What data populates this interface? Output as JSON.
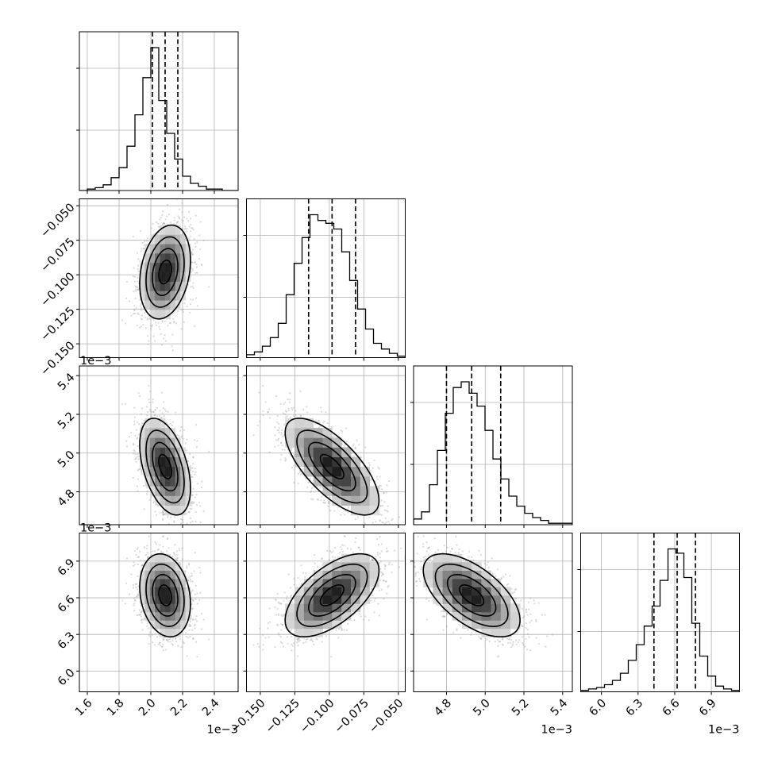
{
  "chart_data": {
    "type": "corner",
    "grid_size": 4,
    "grid": true,
    "parameters": [
      {
        "range": [
          0.00155,
          0.00255
        ],
        "ticks": [
          0.0016,
          0.0018,
          0.002,
          0.0022,
          0.0024
        ],
        "tick_labels": [
          "1.6",
          "1.8",
          "2.0",
          "2.2",
          "2.4"
        ],
        "offset_label": "1e−3",
        "median": 0.00209,
        "sigma": 8e-05,
        "quantiles": [
          0.00201,
          0.00209,
          0.00217
        ],
        "histogram": {
          "edges_start": 0.00155,
          "bin_width": 5e-05,
          "counts": [
            0,
            1,
            2,
            4,
            9,
            16,
            31,
            53,
            79,
            100,
            63,
            40,
            22,
            10,
            5,
            3,
            1,
            1,
            0,
            0
          ]
        }
      },
      {
        "range": [
          -0.16,
          -0.045
        ],
        "ticks": [
          -0.15,
          -0.125,
          -0.1,
          -0.075,
          -0.05
        ],
        "tick_labels": [
          "−0.150",
          "−0.125",
          "−0.100",
          "−0.075",
          "−0.050"
        ],
        "offset_label": "",
        "median": -0.098,
        "sigma": 0.017,
        "quantiles": [
          -0.115,
          -0.098,
          -0.081
        ],
        "histogram": {
          "edges_start": -0.16,
          "bin_width": 0.00575,
          "counts": [
            2,
            4,
            8,
            14,
            24,
            44,
            66,
            84,
            100,
            96,
            94,
            90,
            74,
            54,
            34,
            20,
            10,
            6,
            3,
            1
          ]
        }
      },
      {
        "range": [
          0.00463,
          0.00545
        ],
        "ticks": [
          0.0048,
          0.005,
          0.0052,
          0.0054
        ],
        "tick_labels": [
          "4.8",
          "5.0",
          "5.2",
          "5.4"
        ],
        "offset_label": "1e−3",
        "median": 0.00493,
        "sigma": 0.000125,
        "quantiles": [
          0.0048,
          0.00493,
          0.00508
        ],
        "histogram": {
          "edges_start": 0.00463,
          "bin_width": 4.1e-05,
          "counts": [
            4,
            9,
            28,
            52,
            78,
            96,
            100,
            92,
            83,
            66,
            46,
            32,
            20,
            13,
            8,
            5,
            3,
            1,
            1,
            1
          ]
        }
      },
      {
        "range": [
          0.00583,
          0.00713
        ],
        "ticks": [
          0.006,
          0.0063,
          0.0066,
          0.0069
        ],
        "tick_labels": [
          "6.0",
          "6.3",
          "6.6",
          "6.9"
        ],
        "offset_label": "1e−3",
        "median": 0.00662,
        "sigma": 0.00017,
        "quantiles": [
          0.00643,
          0.00662,
          0.00677
        ],
        "histogram": {
          "edges_start": 0.00583,
          "bin_width": 6.5e-05,
          "counts": [
            1,
            2,
            3,
            5,
            8,
            13,
            22,
            33,
            46,
            60,
            78,
            100,
            97,
            80,
            48,
            25,
            11,
            4,
            2,
            1
          ]
        }
      }
    ],
    "correlations": [
      [
        1,
        0.25,
        -0.45,
        -0.2
      ],
      [
        0.25,
        1,
        -0.7,
        0.6
      ],
      [
        -0.45,
        -0.7,
        1,
        -0.6
      ],
      [
        -0.2,
        0.6,
        -0.6,
        1
      ]
    ],
    "density_levels_sigma": [
      0.5,
      1.0,
      1.5,
      2.0
    ]
  }
}
